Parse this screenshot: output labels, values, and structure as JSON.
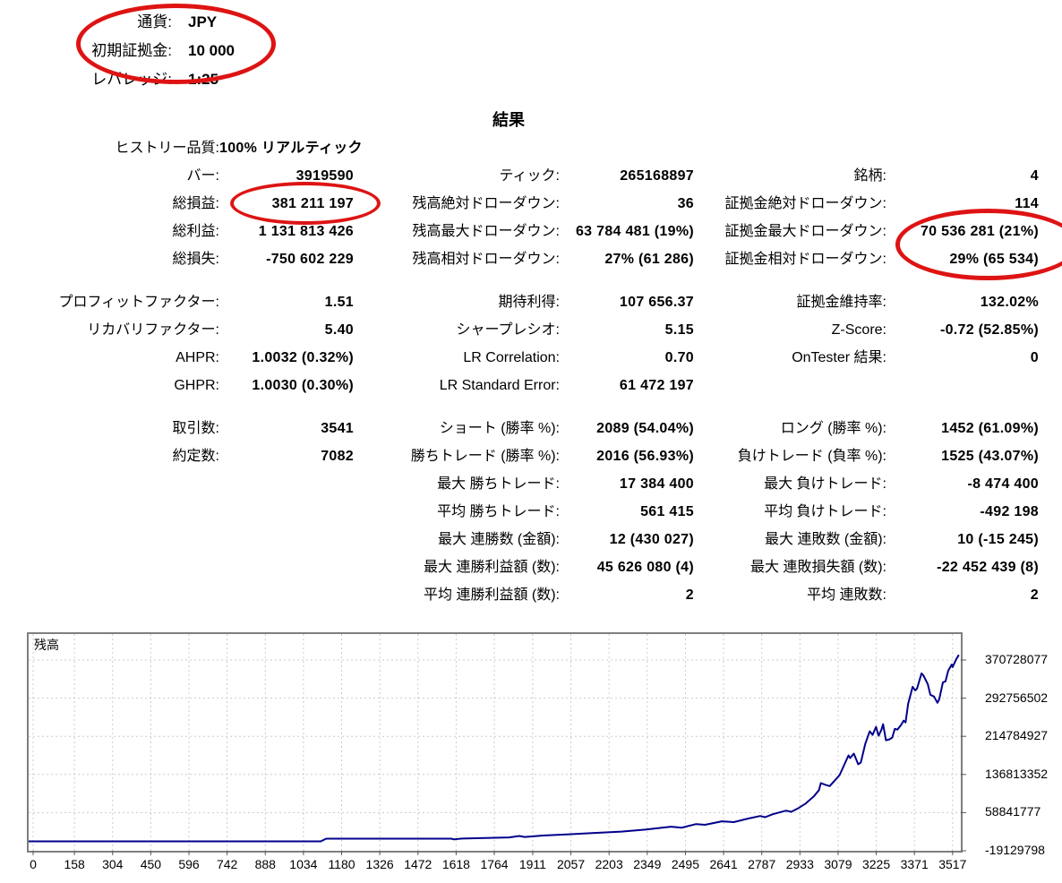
{
  "settings": {
    "rows": [
      {
        "label": "通貨:",
        "value": "JPY"
      },
      {
        "label": "初期証拠金:",
        "value": "10 000"
      },
      {
        "label": "レバレッジ:",
        "value": "1:25"
      }
    ]
  },
  "results_title": "結果",
  "stats": {
    "rows": [
      {
        "cells": [
          {
            "label": "ヒストリー品質:",
            "value": "100% リアルティック"
          },
          null,
          null
        ]
      },
      {
        "cells": [
          {
            "label": "バー:",
            "value": "3919590"
          },
          {
            "label": "ティック:",
            "value": "265168897"
          },
          {
            "label": "銘柄:",
            "value": "4"
          }
        ]
      },
      {
        "cells": [
          {
            "label": "総損益:",
            "value": "381 211 197"
          },
          {
            "label": "残高絶対ドローダウン:",
            "value": "36"
          },
          {
            "label": "証拠金絶対ドローダウン:",
            "value": "114"
          }
        ]
      },
      {
        "cells": [
          {
            "label": "総利益:",
            "value": "1 131 813 426"
          },
          {
            "label": "残高最大ドローダウン:",
            "value": "63 784 481 (19%)"
          },
          {
            "label": "証拠金最大ドローダウン:",
            "value": "70 536 281 (21%)"
          }
        ]
      },
      {
        "cells": [
          {
            "label": "総損失:",
            "value": "-750 602 229"
          },
          {
            "label": "残高相対ドローダウン:",
            "value": "27% (61 286)"
          },
          {
            "label": "証拠金相対ドローダウン:",
            "value": "29% (65 534)"
          }
        ]
      },
      {
        "gap": true
      },
      {
        "cells": [
          {
            "label": "プロフィットファクター:",
            "value": "1.51"
          },
          {
            "label": "期待利得:",
            "value": "107 656.37"
          },
          {
            "label": "証拠金維持率:",
            "value": "132.02%"
          }
        ]
      },
      {
        "cells": [
          {
            "label": "リカバリファクター:",
            "value": "5.40"
          },
          {
            "label": "シャープレシオ:",
            "value": "5.15"
          },
          {
            "label": "Z-Score:",
            "value": "-0.72 (52.85%)"
          }
        ]
      },
      {
        "cells": [
          {
            "label": "AHPR:",
            "value": "1.0032 (0.32%)"
          },
          {
            "label": "LR Correlation:",
            "value": "0.70"
          },
          {
            "label": "OnTester 結果:",
            "value": "0"
          }
        ]
      },
      {
        "cells": [
          {
            "label": "GHPR:",
            "value": "1.0030 (0.30%)"
          },
          {
            "label": "LR Standard Error:",
            "value": "61 472 197"
          },
          null
        ]
      },
      {
        "gap": true
      },
      {
        "cells": [
          {
            "label": "取引数:",
            "value": "3541"
          },
          {
            "label": "ショート (勝率 %):",
            "value": "2089 (54.04%)"
          },
          {
            "label": "ロング (勝率 %):",
            "value": "1452 (61.09%)"
          }
        ]
      },
      {
        "cells": [
          {
            "label": "約定数:",
            "value": "7082"
          },
          {
            "label": "勝ちトレード (勝率 %):",
            "value": "2016 (56.93%)"
          },
          {
            "label": "負けトレード (負率 %):",
            "value": "1525 (43.07%)"
          }
        ]
      },
      {
        "cells": [
          null,
          {
            "label": "最大 勝ちトレード:",
            "value": "17 384 400"
          },
          {
            "label": "最大 負けトレード:",
            "value": "-8 474 400"
          }
        ]
      },
      {
        "cells": [
          null,
          {
            "label": "平均 勝ちトレード:",
            "value": "561 415"
          },
          {
            "label": "平均 負けトレード:",
            "value": "-492 198"
          }
        ]
      },
      {
        "cells": [
          null,
          {
            "label": "最大 連勝数 (金額):",
            "value": "12 (430 027)"
          },
          {
            "label": "最大 連敗数 (金額):",
            "value": "10 (-15 245)"
          }
        ]
      },
      {
        "cells": [
          null,
          {
            "label": "最大 連勝利益額 (数):",
            "value": "45 626 080 (4)"
          },
          {
            "label": "最大 連敗損失額 (数):",
            "value": "-22 452 439 (8)"
          }
        ]
      },
      {
        "cells": [
          null,
          {
            "label": "平均 連勝利益額 (数):",
            "value": "2"
          },
          {
            "label": "平均 連敗数:",
            "value": "2"
          }
        ]
      }
    ]
  },
  "annotations": {
    "color": "#dd1413",
    "targets": [
      "通貨 / 初期証拠金",
      "総損益 381 211 197",
      "証拠金最大/相対ドローダウン"
    ]
  },
  "chart_data": {
    "type": "line",
    "title": "残高",
    "line_color": "#00008B",
    "grid": true,
    "x_range": [
      0,
      3545
    ],
    "y_axis": {
      "top_value": 370728077,
      "step": 77971575
    },
    "x_ticks": [
      0,
      158,
      304,
      450,
      596,
      742,
      888,
      1034,
      1180,
      1326,
      1472,
      1618,
      1764,
      1911,
      2057,
      2203,
      2349,
      2495,
      2641,
      2787,
      2933,
      3079,
      3225,
      3371,
      3517
    ],
    "y_ticks": [
      370728077,
      292756502,
      214784927,
      136813352,
      58841777,
      -19129798
    ],
    "series": [
      {
        "name": "残高",
        "points": [
          [
            0,
            10000
          ],
          [
            1100,
            10000
          ],
          [
            1121,
            5500000
          ],
          [
            1600,
            5500000
          ],
          [
            1609,
            4200000
          ],
          [
            1640,
            5800000
          ],
          [
            1820,
            8200000
          ],
          [
            1860,
            11000000
          ],
          [
            1880,
            9000000
          ],
          [
            1950,
            12000000
          ],
          [
            2050,
            14500000
          ],
          [
            2147,
            17300000
          ],
          [
            2250,
            20000000
          ],
          [
            2341,
            24000000
          ],
          [
            2440,
            30100000
          ],
          [
            2480,
            28000000
          ],
          [
            2536,
            35500000
          ],
          [
            2570,
            34000000
          ],
          [
            2635,
            41000000
          ],
          [
            2680,
            39500000
          ],
          [
            2734,
            46500000
          ],
          [
            2781,
            51900000
          ],
          [
            2800,
            49500000
          ],
          [
            2829,
            55600000
          ],
          [
            2880,
            62900000
          ],
          [
            2900,
            60500000
          ],
          [
            2928,
            68300000
          ],
          [
            2955,
            77400000
          ],
          [
            2986,
            92000000
          ],
          [
            3006,
            104800000
          ],
          [
            3013,
            119300000
          ],
          [
            3030,
            115700000
          ],
          [
            3047,
            113000000
          ],
          [
            3085,
            135700000
          ],
          [
            3108,
            163000000
          ],
          [
            3119,
            175800000
          ],
          [
            3125,
            170300000
          ],
          [
            3139,
            179400000
          ],
          [
            3156,
            157600000
          ],
          [
            3166,
            161200000
          ],
          [
            3183,
            199500000
          ],
          [
            3200,
            225000000
          ],
          [
            3211,
            217700000
          ],
          [
            3224,
            234100000
          ],
          [
            3234,
            215900000
          ],
          [
            3245,
            228600000
          ],
          [
            3251,
            239500000
          ],
          [
            3262,
            206800000
          ],
          [
            3275,
            208600000
          ],
          [
            3286,
            212300000
          ],
          [
            3296,
            230000000
          ],
          [
            3306,
            228600000
          ],
          [
            3320,
            238000000
          ],
          [
            3330,
            246800000
          ],
          [
            3337,
            243200000
          ],
          [
            3347,
            281400000
          ],
          [
            3364,
            316000000
          ],
          [
            3374,
            308700000
          ],
          [
            3381,
            312400000
          ],
          [
            3398,
            343300000
          ],
          [
            3405,
            339700000
          ],
          [
            3422,
            321500000
          ],
          [
            3432,
            299600000
          ],
          [
            3446,
            296000000
          ],
          [
            3459,
            283200000
          ],
          [
            3466,
            290500000
          ],
          [
            3480,
            325200000
          ],
          [
            3490,
            327000000
          ],
          [
            3500,
            348800000
          ],
          [
            3514,
            361500000
          ],
          [
            3517,
            356000000
          ],
          [
            3531,
            372400000
          ],
          [
            3541,
            381221197
          ]
        ]
      }
    ]
  }
}
